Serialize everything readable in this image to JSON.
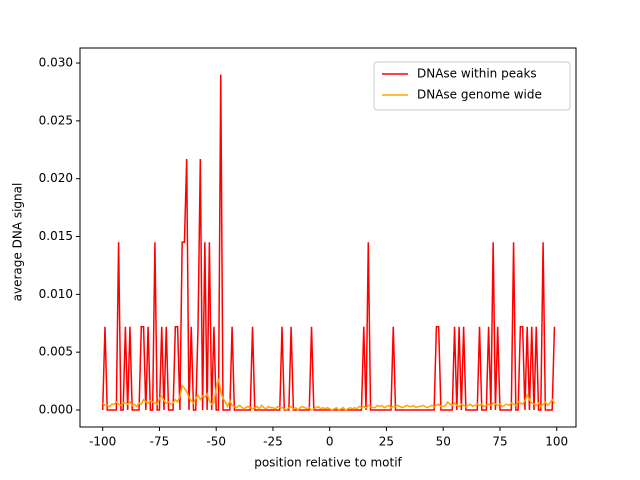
{
  "chart_data": {
    "type": "line",
    "xlabel": "position relative to motif",
    "ylabel": "average DNA signal",
    "x": [
      -100,
      -99,
      -98,
      -97,
      -96,
      -95,
      -94,
      -93,
      -92,
      -91,
      -90,
      -89,
      -88,
      -87,
      -86,
      -85,
      -84,
      -83,
      -82,
      -81,
      -80,
      -79,
      -78,
      -77,
      -76,
      -75,
      -74,
      -73,
      -72,
      -71,
      -70,
      -69,
      -68,
      -67,
      -66,
      -65,
      -64,
      -63,
      -62,
      -61,
      -60,
      -59,
      -58,
      -57,
      -56,
      -55,
      -54,
      -53,
      -52,
      -51,
      -50,
      -49,
      -48,
      -47,
      -46,
      -45,
      -44,
      -43,
      -42,
      -41,
      -40,
      -39,
      -38,
      -37,
      -36,
      -35,
      -34,
      -33,
      -32,
      -31,
      -30,
      -29,
      -28,
      -27,
      -26,
      -25,
      -24,
      -23,
      -22,
      -21,
      -20,
      -19,
      -18,
      -17,
      -16,
      -15,
      -14,
      -13,
      -12,
      -11,
      -10,
      -9,
      -8,
      -7,
      -6,
      -5,
      -4,
      -3,
      -2,
      -1,
      0,
      1,
      2,
      3,
      4,
      5,
      6,
      7,
      8,
      9,
      10,
      11,
      12,
      13,
      14,
      15,
      16,
      17,
      18,
      19,
      20,
      21,
      22,
      23,
      24,
      25,
      26,
      27,
      28,
      29,
      30,
      31,
      32,
      33,
      34,
      35,
      36,
      37,
      38,
      39,
      40,
      41,
      42,
      43,
      44,
      45,
      46,
      47,
      48,
      49,
      50,
      51,
      52,
      53,
      54,
      55,
      56,
      57,
      58,
      59,
      60,
      61,
      62,
      63,
      64,
      65,
      66,
      67,
      68,
      69,
      70,
      71,
      72,
      73,
      74,
      75,
      76,
      77,
      78,
      79,
      80,
      81,
      82,
      83,
      84,
      85,
      86,
      87,
      88,
      89,
      90,
      91,
      92,
      93,
      94,
      95,
      96,
      97,
      98,
      99
    ],
    "series": [
      {
        "name": "DNAse within peaks",
        "color": "#ff0000",
        "values": [
          0,
          0.0072,
          0,
          0,
          0,
          0,
          0,
          0.0145,
          0,
          0,
          0.0072,
          0,
          0.0072,
          0,
          0,
          0,
          0,
          0.0072,
          0.0072,
          0,
          0.0072,
          0,
          0,
          0.0145,
          0,
          0,
          0.0072,
          0,
          0.0072,
          0,
          0,
          0,
          0.0072,
          0.0072,
          0,
          0.0145,
          0.0145,
          0.0217,
          0,
          0.0072,
          0,
          0,
          0.0072,
          0.0217,
          0,
          0.0145,
          0,
          0.0145,
          0,
          0.0072,
          0,
          0,
          0.029,
          0,
          0,
          0,
          0,
          0.0072,
          0,
          0,
          0,
          0,
          0,
          0,
          0,
          0,
          0.0072,
          0,
          0,
          0,
          0,
          0,
          0,
          0,
          0,
          0,
          0,
          0,
          0,
          0.0072,
          0,
          0,
          0,
          0.0072,
          0,
          0,
          0,
          0,
          0,
          0,
          0,
          0,
          0.0072,
          0,
          0,
          0,
          0,
          0,
          0,
          0,
          0,
          0,
          0,
          0,
          0,
          0,
          0,
          0,
          0,
          0,
          0,
          0,
          0,
          0,
          0,
          0.0072,
          0,
          0.0145,
          0,
          0,
          0,
          0,
          0,
          0,
          0,
          0,
          0,
          0,
          0.0072,
          0,
          0,
          0,
          0,
          0,
          0,
          0,
          0,
          0,
          0,
          0,
          0,
          0,
          0,
          0,
          0,
          0,
          0,
          0.0072,
          0.0072,
          0,
          0,
          0,
          0,
          0,
          0,
          0.0072,
          0,
          0.0072,
          0,
          0.0072,
          0,
          0,
          0,
          0,
          0,
          0,
          0.0072,
          0,
          0,
          0,
          0.0072,
          0,
          0.0145,
          0,
          0.0072,
          0,
          0,
          0,
          0,
          0,
          0,
          0.0145,
          0,
          0,
          0.0072,
          0.0072,
          0,
          0.0072,
          0,
          0.0072,
          0,
          0.0072,
          0,
          0,
          0.0145,
          0,
          0,
          0,
          0,
          0.0072
        ]
      },
      {
        "name": "DNAse genome wide",
        "color": "#ffa500",
        "values": [
          0.0006,
          0.0004,
          0.0004,
          0.0003,
          0.0005,
          0.0005,
          0.0007,
          0.0005,
          0.0004,
          0.0006,
          0.0006,
          0.0005,
          0.0007,
          0.0004,
          0.0005,
          0.0003,
          0.0006,
          0.0005,
          0.0009,
          0.0007,
          0.0006,
          0.0008,
          0.0007,
          0.0006,
          0.0005,
          0.001,
          0.0012,
          0.0008,
          0.0006,
          0.0007,
          0.0005,
          0.0006,
          0.0009,
          0.0007,
          0.0012,
          0.0021,
          0.0019,
          0.0016,
          0.0011,
          0.0008,
          0.0006,
          0.001,
          0.0013,
          0.0009,
          0.0012,
          0.0011,
          0.0014,
          0.0008,
          0.0005,
          0.0006,
          0.0019,
          0.0027,
          0.0016,
          0.001,
          0.0007,
          0.0003,
          0.0008,
          0.0004,
          0.0003,
          0.0002,
          0.0004,
          0.0003,
          0.0001,
          0.0002,
          0.0003,
          0.0002,
          0.0001,
          0.0002,
          0.0003,
          0.0001,
          0.0004,
          0.0002,
          0.0001,
          0.0003,
          0.0002,
          0.0002,
          0.0001,
          0.0003,
          0.0002,
          0.0002,
          0.0001,
          0,
          0.0002,
          0.0003,
          0.0001,
          0.0002,
          0,
          0.0002,
          0.0003,
          0.0002,
          0.0001,
          0.0002,
          0,
          0.0001,
          0.0002,
          0.0003,
          0.0001,
          0.0002,
          0.0001,
          0.0002,
          0.0001,
          0,
          0.0001,
          0.0002,
          0,
          0.0001,
          0.0002,
          0,
          0.0001,
          0.0002,
          0.0001,
          0.0002,
          0.0001,
          0.0003,
          0.0002,
          0.0003,
          0.0002,
          0.0004,
          0.0003,
          0.0002,
          0.0002,
          0.0004,
          0.0003,
          0.0004,
          0.0002,
          0.0003,
          0.0004,
          0.0002,
          0.0003,
          0.0003,
          0.0004,
          0.0003,
          0.0002,
          0.0003,
          0.0004,
          0.0003,
          0.0003,
          0.0004,
          0.0002,
          0.0003,
          0.0003,
          0.0004,
          0.0003,
          0.0002,
          0.0003,
          0.0004,
          0.0003,
          0.0004,
          0.0005,
          0.0003,
          0.0003,
          0.0004,
          0.0007,
          0.0005,
          0.0004,
          0.0006,
          0.0004,
          0.0003,
          0.0005,
          0.0004,
          0.0003,
          0.0004,
          0.0005,
          0.0003,
          0.0004,
          0.0005,
          0.0004,
          0.0005,
          0.0003,
          0.0004,
          0.0005,
          0.0004,
          0.0006,
          0.0005,
          0.0004,
          0.0005,
          0.0003,
          0.0004,
          0.0005,
          0.0004,
          0.0006,
          0.0005,
          0.0004,
          0.0007,
          0.0006,
          0.0005,
          0.0008,
          0.0013,
          0.0009,
          0.0006,
          0.0005,
          0.0004,
          0.0006,
          0.0003,
          0.0005,
          0.0007,
          0.0004,
          0.0006,
          0.0009,
          0.0006
        ]
      }
    ],
    "xlim": [
      -110,
      108.5
    ],
    "xticks": [
      -100,
      -75,
      -50,
      -25,
      0,
      25,
      50,
      75,
      100
    ],
    "ylim": [
      -0.00147,
      0.0313
    ],
    "yticks": [
      {
        "value": 0,
        "label": "0.000"
      },
      {
        "value": 0.005,
        "label": "0.005"
      },
      {
        "value": 0.01,
        "label": "0.010"
      },
      {
        "value": 0.015,
        "label": "0.015"
      },
      {
        "value": 0.02,
        "label": "0.020"
      },
      {
        "value": 0.025,
        "label": "0.025"
      },
      {
        "value": 0.03,
        "label": "0.030"
      }
    ],
    "legend": "upper right"
  }
}
